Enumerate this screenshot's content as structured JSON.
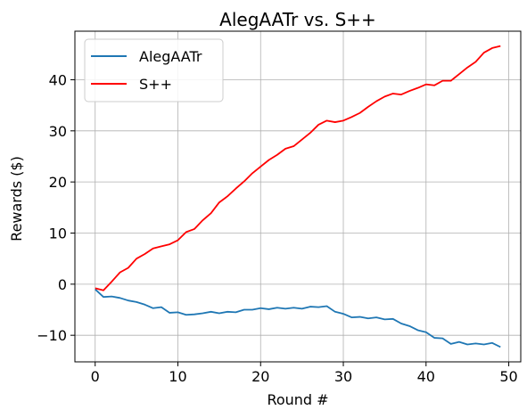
{
  "chart_data": {
    "type": "line",
    "title": "AlegAATr vs. S++",
    "xlabel": "Round #",
    "ylabel": "Rewards ($)",
    "xlim": [
      -2.45,
      51.45
    ],
    "ylim": [
      -15.2,
      49.5
    ],
    "xticks": [
      0,
      10,
      20,
      30,
      40,
      50
    ],
    "xtick_labels": [
      "0",
      "10",
      "20",
      "30",
      "40",
      "50"
    ],
    "yticks": [
      -10,
      0,
      10,
      20,
      30,
      40
    ],
    "ytick_labels": [
      "−10",
      "0",
      "10",
      "20",
      "30",
      "40"
    ],
    "grid": true,
    "legend_position": "upper-left",
    "series": [
      {
        "name": "AlegAATr",
        "color": "#1f77b4",
        "x": [
          0,
          1,
          2,
          3,
          4,
          5,
          6,
          7,
          8,
          9,
          10,
          11,
          12,
          13,
          14,
          15,
          16,
          17,
          18,
          19,
          20,
          21,
          22,
          23,
          24,
          25,
          26,
          27,
          28,
          29,
          30,
          31,
          32,
          33,
          34,
          35,
          36,
          37,
          38,
          39,
          40,
          41,
          42,
          43,
          44,
          45,
          46,
          47,
          48,
          49
        ],
        "values": [
          -1.0,
          -2.5,
          -2.4,
          -2.7,
          -3.2,
          -3.5,
          -4.0,
          -4.7,
          -4.5,
          -5.6,
          -5.5,
          -6.0,
          -5.9,
          -5.7,
          -5.4,
          -5.7,
          -5.4,
          -5.5,
          -5.0,
          -5.0,
          -4.7,
          -4.9,
          -4.6,
          -4.8,
          -4.6,
          -4.8,
          -4.4,
          -4.5,
          -4.3,
          -5.4,
          -5.8,
          -6.5,
          -6.4,
          -6.7,
          -6.5,
          -6.9,
          -6.8,
          -7.7,
          -8.2,
          -9.0,
          -9.4,
          -10.5,
          -10.6,
          -11.7,
          -11.3,
          -11.8,
          -11.6,
          -11.8,
          -11.5,
          -12.3
        ]
      },
      {
        "name": "S++",
        "color": "#ff0000",
        "x": [
          0,
          1,
          2,
          3,
          4,
          5,
          6,
          7,
          8,
          9,
          10,
          11,
          12,
          13,
          14,
          15,
          16,
          17,
          18,
          19,
          20,
          21,
          22,
          23,
          24,
          25,
          26,
          27,
          28,
          29,
          30,
          31,
          32,
          33,
          34,
          35,
          36,
          37,
          38,
          39,
          40,
          41,
          42,
          43,
          44,
          45,
          46,
          47,
          48,
          49
        ],
        "values": [
          -0.8,
          -1.2,
          0.5,
          2.3,
          3.2,
          5.0,
          5.9,
          7.0,
          7.4,
          7.8,
          8.6,
          10.2,
          10.8,
          12.5,
          13.9,
          16.0,
          17.2,
          18.7,
          20.1,
          21.7,
          23.0,
          24.3,
          25.3,
          26.5,
          27.0,
          28.3,
          29.6,
          31.2,
          32.0,
          31.7,
          32.0,
          32.7,
          33.5,
          34.7,
          35.8,
          36.7,
          37.3,
          37.1,
          37.8,
          38.4,
          39.1,
          38.9,
          39.8,
          39.8,
          41.1,
          42.4,
          43.5,
          45.3,
          46.2,
          46.6
        ]
      }
    ]
  }
}
